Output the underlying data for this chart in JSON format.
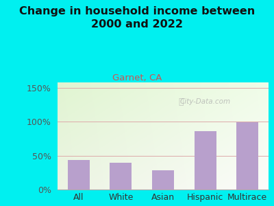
{
  "title": "Change in household income between\n2000 and 2022",
  "subtitle": "Garnet, CA",
  "categories": [
    "All",
    "White",
    "Asian",
    "Hispanic",
    "Multirace"
  ],
  "values": [
    44,
    40,
    28,
    86,
    99
  ],
  "bar_color": "#b8a0cc",
  "title_fontsize": 11.5,
  "subtitle_fontsize": 9.5,
  "subtitle_color": "#cc5555",
  "tick_label_fontsize": 9,
  "ytick_labels": [
    "0%",
    "50%",
    "100%",
    "150%"
  ],
  "ytick_values": [
    0,
    50,
    100,
    150
  ],
  "ylim": [
    0,
    158
  ],
  "background_outer": "#00f0f0",
  "grid_color": "#ddaaaa",
  "watermark": "City-Data.com",
  "bar_width": 0.52
}
